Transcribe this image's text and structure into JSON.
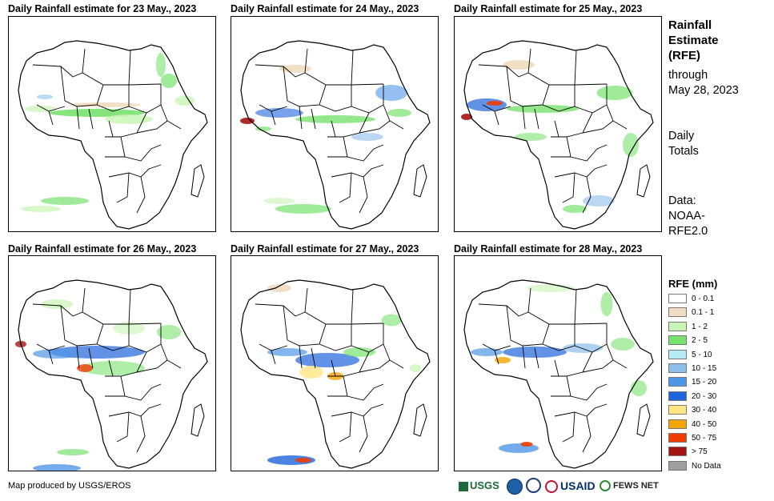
{
  "panels": [
    {
      "title": "Daily Rainfall estimate for 23 May., 2023"
    },
    {
      "title": "Daily Rainfall estimate for 24 May., 2023"
    },
    {
      "title": "Daily Rainfall estimate for 25 May., 2023"
    },
    {
      "title": "Daily Rainfall estimate for 26 May., 2023"
    },
    {
      "title": "Daily Rainfall estimate for 27 May., 2023"
    },
    {
      "title": "Daily Rainfall estimate for 28 May., 2023"
    }
  ],
  "sidebar": {
    "title_line1": "Rainfall",
    "title_line2": "Estimate",
    "title_line3": "(RFE)",
    "through": "through",
    "date": "May 28, 2023",
    "daily1": "Daily",
    "daily2": "Totals",
    "data1": "Data:",
    "data2": "NOAA-",
    "data3": "RFE2.0"
  },
  "legend": {
    "title": "RFE (mm)",
    "items": [
      {
        "label": "0 - 0.1",
        "color": "#ffffff"
      },
      {
        "label": "0.1 - 1",
        "color": "#f0dcc0"
      },
      {
        "label": "1 - 2",
        "color": "#c8f5b4"
      },
      {
        "label": "2 - 5",
        "color": "#78e26e"
      },
      {
        "label": "5 - 10",
        "color": "#b4ebf5"
      },
      {
        "label": "10 - 15",
        "color": "#8cbeeb"
      },
      {
        "label": "15 - 20",
        "color": "#5096e6"
      },
      {
        "label": "20 - 30",
        "color": "#1e64dc"
      },
      {
        "label": "30 - 40",
        "color": "#ffe682"
      },
      {
        "label": "40 - 50",
        "color": "#f5a500"
      },
      {
        "label": "50 - 75",
        "color": "#f03c00"
      },
      {
        "label": "> 75",
        "color": "#a51414"
      },
      {
        "label": "No Data",
        "color": "#a0a0a0"
      }
    ]
  },
  "footer": {
    "credit": "Map produced by USGS/EROS",
    "logo_usgs": "USGS",
    "logo_usaid": "USAID",
    "logo_fews": "FEWS NET"
  }
}
